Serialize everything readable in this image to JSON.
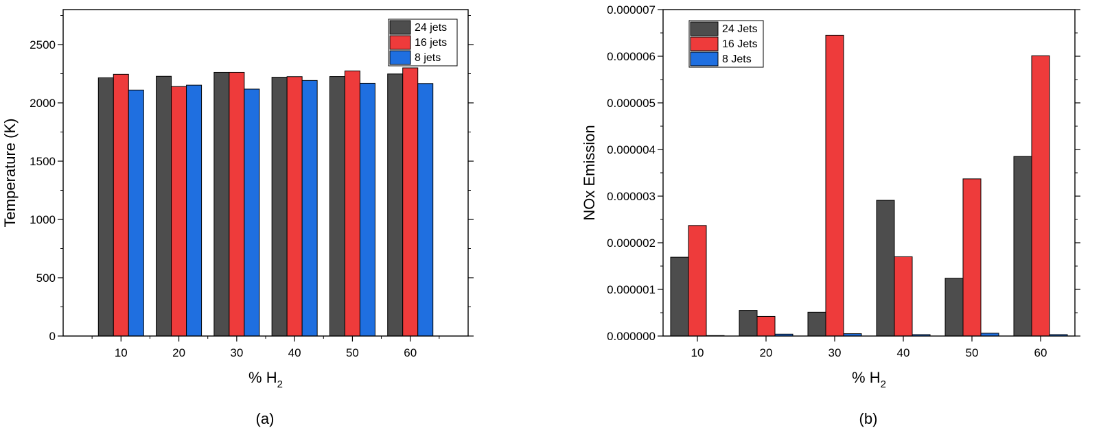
{
  "chart_data": [
    {
      "panel_label": "(a)",
      "type": "bar",
      "xlabel": "% H",
      "xlabel_sub": "2",
      "ylabel": "Temperature (K)",
      "categories": [
        "10",
        "20",
        "30",
        "40",
        "50",
        "60"
      ],
      "x": [
        10,
        20,
        30,
        40,
        50,
        60
      ],
      "xlim": [
        0,
        70
      ],
      "ylim": [
        0,
        2800
      ],
      "yticks": [
        0,
        500,
        1000,
        1500,
        2000,
        2500
      ],
      "ytick_labels": [
        "0",
        "500",
        "1000",
        "1500",
        "2000",
        "2500"
      ],
      "legend_position": "top-right",
      "grid": false,
      "series": [
        {
          "name": "24 jets",
          "color": "#4d4d4d",
          "values": [
            2215,
            2228,
            2262,
            2220,
            2226,
            2248
          ]
        },
        {
          "name": "16 jets",
          "color": "#ee3b3b",
          "values": [
            2245,
            2140,
            2262,
            2225,
            2274,
            2300
          ]
        },
        {
          "name": "8 jets",
          "color": "#1f6fe0",
          "values": [
            2110,
            2152,
            2118,
            2192,
            2168,
            2166
          ]
        }
      ]
    },
    {
      "panel_label": "(b)",
      "type": "bar",
      "xlabel": "% H",
      "xlabel_sub": "2",
      "ylabel": "NOx Emission",
      "categories": [
        "10",
        "20",
        "30",
        "40",
        "50",
        "60"
      ],
      "x": [
        10,
        20,
        30,
        40,
        50,
        60
      ],
      "xlim": [
        5,
        65
      ],
      "ylim": [
        0,
        7e-06
      ],
      "yticks": [
        0,
        1e-06,
        2e-06,
        3e-06,
        4e-06,
        5e-06,
        6e-06,
        7e-06
      ],
      "ytick_labels": [
        "0.000000",
        "0.000001",
        "0.000002",
        "0.000003",
        "0.000004",
        "0.000005",
        "0.000006",
        "0.000007"
      ],
      "legend_position": "top-left",
      "grid": false,
      "series": [
        {
          "name": "24 Jets",
          "color": "#4d4d4d",
          "values": [
            1.69e-06,
            5.5e-07,
            5.1e-07,
            2.91e-06,
            1.24e-06,
            3.85e-06
          ]
        },
        {
          "name": "16 Jets",
          "color": "#ee3b3b",
          "values": [
            2.37e-06,
            4.2e-07,
            6.45e-06,
            1.7e-06,
            3.37e-06,
            6.01e-06
          ]
        },
        {
          "name": "8 Jets",
          "color": "#1f6fe0",
          "values": [
            1e-08,
            4e-08,
            5e-08,
            3e-08,
            6e-08,
            3e-08
          ]
        }
      ]
    }
  ]
}
